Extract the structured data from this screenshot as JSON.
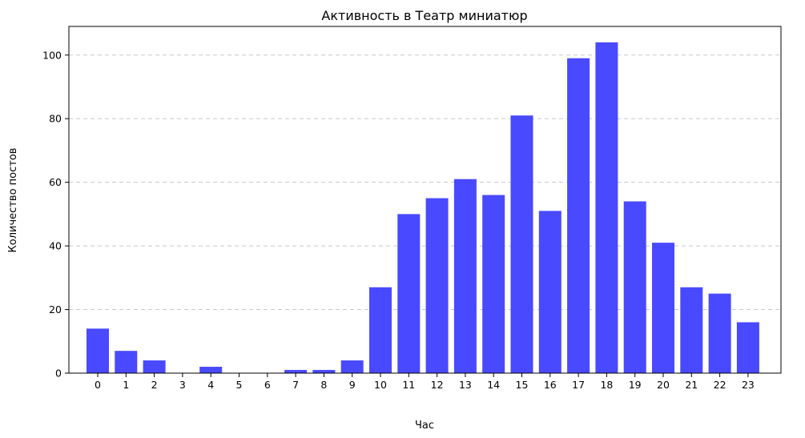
{
  "chart_data": {
    "type": "bar",
    "title": "Активность в Театр миниатюр",
    "xlabel": "Час",
    "ylabel": "Количество постов",
    "categories": [
      "0",
      "1",
      "2",
      "3",
      "4",
      "5",
      "6",
      "7",
      "8",
      "9",
      "10",
      "11",
      "12",
      "13",
      "14",
      "15",
      "16",
      "17",
      "18",
      "19",
      "20",
      "21",
      "22",
      "23"
    ],
    "values": [
      14,
      7,
      4,
      0,
      2,
      0,
      0,
      1,
      1,
      4,
      27,
      50,
      55,
      61,
      56,
      81,
      51,
      99,
      104,
      54,
      41,
      27,
      25,
      16
    ],
    "ylim": [
      0,
      109
    ],
    "yticks": [
      0,
      20,
      40,
      60,
      80,
      100
    ],
    "grid": "y-dashed",
    "bar_color": "#4949ff"
  }
}
